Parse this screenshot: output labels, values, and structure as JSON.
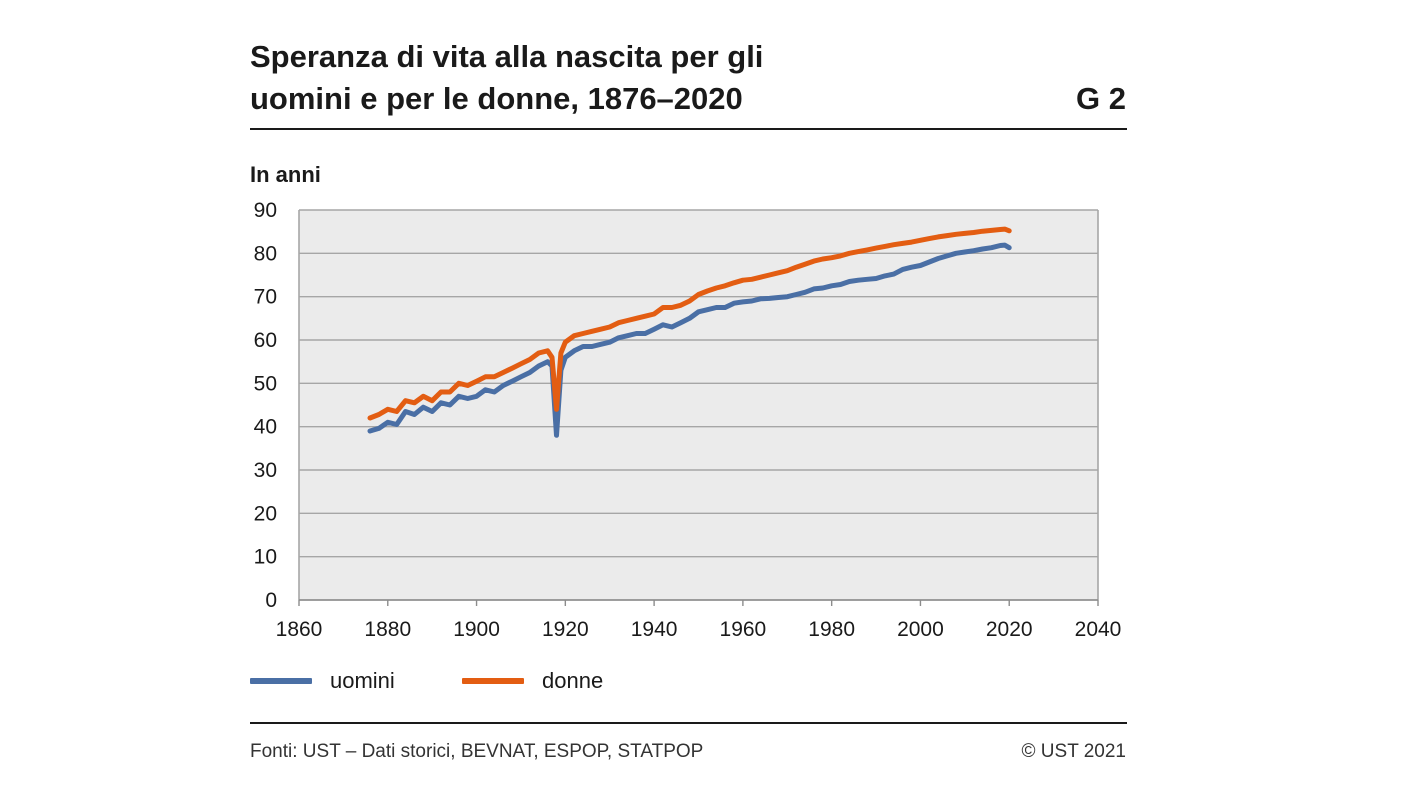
{
  "header": {
    "title_line1": "Speranza di vita alla nascita per gli",
    "title_line2": "uomini e per le donne, 1876–2020",
    "figure_id": "G 2"
  },
  "footer": {
    "source": "Fonti: UST – Dati storici, BEVNAT, ESPOP, STATPOP",
    "copyright": "© UST 2021"
  },
  "chart_data": {
    "type": "line",
    "title": "Speranza di vita alla nascita per gli uomini e per le donne, 1876–2020",
    "ylabel": "In anni",
    "xlabel": "",
    "xlim": [
      1860,
      2040
    ],
    "ylim": [
      0,
      90
    ],
    "xticks": [
      1860,
      1880,
      1900,
      1920,
      1940,
      1960,
      1980,
      2000,
      2020,
      2040
    ],
    "yticks": [
      0,
      10,
      20,
      30,
      40,
      50,
      60,
      70,
      80,
      90
    ],
    "grid": true,
    "legend_position": "bottom-left",
    "colors": {
      "plot_bg": "#ebebeb",
      "grid": "#a6a6a6",
      "uomini": "#4a6fa5",
      "donne": "#e35d12"
    },
    "series": [
      {
        "name": "uomini",
        "x": [
          1876,
          1878,
          1880,
          1882,
          1884,
          1886,
          1888,
          1890,
          1892,
          1894,
          1896,
          1898,
          1900,
          1902,
          1904,
          1906,
          1908,
          1910,
          1912,
          1914,
          1916,
          1917,
          1918,
          1919,
          1920,
          1922,
          1924,
          1926,
          1928,
          1930,
          1932,
          1934,
          1936,
          1938,
          1940,
          1942,
          1944,
          1946,
          1948,
          1950,
          1952,
          1954,
          1956,
          1958,
          1960,
          1962,
          1964,
          1966,
          1968,
          1970,
          1972,
          1974,
          1976,
          1978,
          1980,
          1982,
          1984,
          1986,
          1988,
          1990,
          1992,
          1994,
          1996,
          1998,
          2000,
          2002,
          2004,
          2006,
          2008,
          2010,
          2012,
          2014,
          2016,
          2018,
          2019,
          2020
        ],
        "values": [
          39,
          39.6,
          41,
          40.5,
          43.5,
          42.8,
          44.5,
          43.5,
          45.5,
          45,
          47,
          46.5,
          47,
          48.5,
          48,
          49.5,
          50.5,
          51.5,
          52.5,
          54,
          55,
          54,
          38,
          53,
          56,
          57.5,
          58.5,
          58.5,
          59,
          59.5,
          60.5,
          61,
          61.5,
          61.5,
          62.5,
          63.5,
          63,
          64,
          65,
          66.5,
          67,
          67.5,
          67.5,
          68.5,
          68.8,
          69,
          69.5,
          69.6,
          69.8,
          70,
          70.5,
          71,
          71.8,
          72,
          72.5,
          72.8,
          73.5,
          73.8,
          74,
          74.2,
          74.8,
          75.2,
          76.3,
          76.8,
          77.2,
          78,
          78.8,
          79.4,
          80,
          80.3,
          80.6,
          81,
          81.3,
          81.8,
          81.9,
          81.3
        ]
      },
      {
        "name": "donne",
        "x": [
          1876,
          1878,
          1880,
          1882,
          1884,
          1886,
          1888,
          1890,
          1892,
          1894,
          1896,
          1898,
          1900,
          1902,
          1904,
          1906,
          1908,
          1910,
          1912,
          1914,
          1916,
          1917,
          1918,
          1919,
          1920,
          1922,
          1924,
          1926,
          1928,
          1930,
          1932,
          1934,
          1936,
          1938,
          1940,
          1942,
          1944,
          1946,
          1948,
          1950,
          1952,
          1954,
          1956,
          1958,
          1960,
          1962,
          1964,
          1966,
          1968,
          1970,
          1972,
          1974,
          1976,
          1978,
          1980,
          1982,
          1984,
          1986,
          1988,
          1990,
          1992,
          1994,
          1996,
          1998,
          2000,
          2002,
          2004,
          2006,
          2008,
          2010,
          2012,
          2014,
          2016,
          2018,
          2019,
          2020
        ],
        "values": [
          42,
          42.8,
          44,
          43.5,
          46,
          45.5,
          47,
          46,
          48,
          48,
          50,
          49.5,
          50.5,
          51.5,
          51.5,
          52.5,
          53.5,
          54.5,
          55.5,
          57,
          57.5,
          56,
          44,
          57,
          59.5,
          61,
          61.5,
          62,
          62.5,
          63,
          64,
          64.5,
          65,
          65.5,
          66,
          67.5,
          67.5,
          68,
          69,
          70.5,
          71.3,
          72,
          72.5,
          73.2,
          73.8,
          74,
          74.5,
          75,
          75.5,
          76,
          76.8,
          77.5,
          78.2,
          78.7,
          79,
          79.4,
          80,
          80.4,
          80.8,
          81.2,
          81.6,
          82,
          82.3,
          82.6,
          83,
          83.4,
          83.8,
          84.1,
          84.4,
          84.6,
          84.8,
          85.1,
          85.3,
          85.5,
          85.6,
          85.2
        ]
      }
    ]
  }
}
